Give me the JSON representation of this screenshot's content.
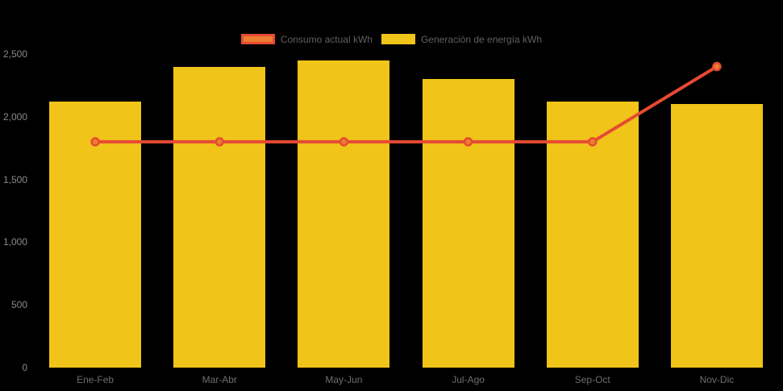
{
  "chart_data": {
    "type": "mixed",
    "categories": [
      "Ene-Feb",
      "Mar-Abr",
      "May-Jun",
      "Jul-Ago",
      "Sep-Oct",
      "Nov-Dic"
    ],
    "series": [
      {
        "name": "Consumo actual kWh",
        "type": "line",
        "values": [
          1800,
          1800,
          1800,
          1800,
          1800,
          2400
        ],
        "line_color": "#E64A33",
        "point_fill": "#ED7D31"
      },
      {
        "name": "Generación de energía kWh",
        "type": "bar",
        "values": [
          2120,
          2400,
          2450,
          2300,
          2120,
          2100
        ],
        "color": "#F0C419"
      }
    ],
    "title": "",
    "xlabel": "",
    "ylabel": "",
    "ylim": [
      0,
      2500
    ],
    "yticks": {
      "values": [
        0,
        500,
        1000,
        1500,
        2000,
        2500
      ],
      "labels": [
        "0",
        "500",
        "1,000",
        "1,500",
        "2,000",
        "2,500"
      ]
    },
    "grid": false,
    "legend_position": "top",
    "background": "#000000"
  }
}
